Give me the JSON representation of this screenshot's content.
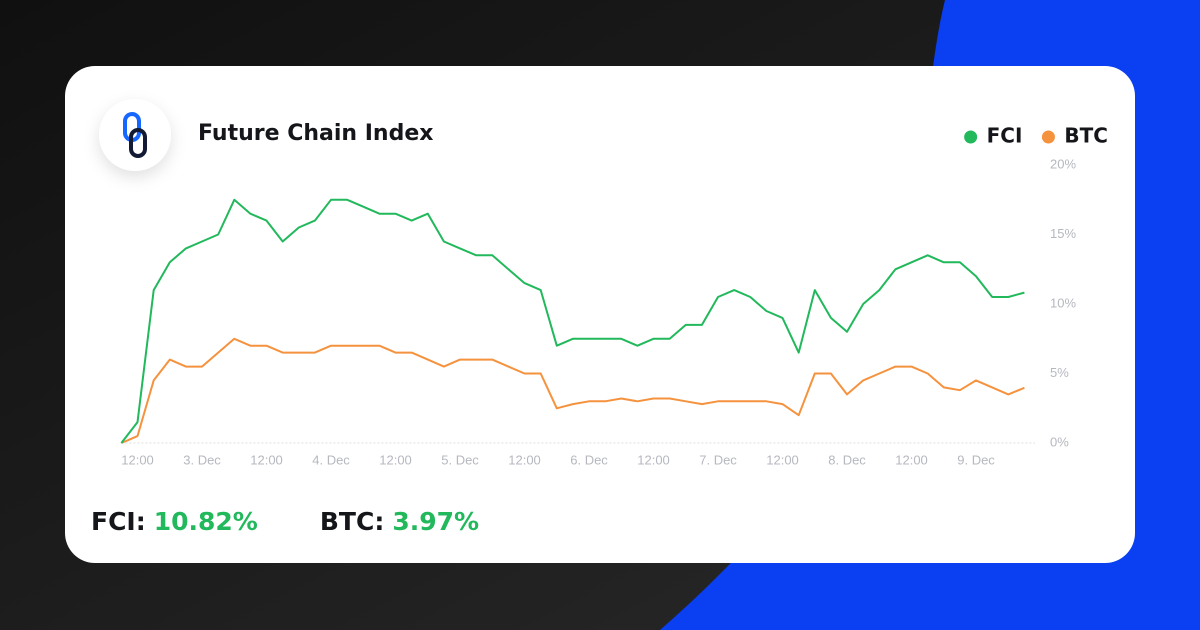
{
  "chart_data": {
    "type": "line",
    "title": "Future Chain Index",
    "categories": [
      null,
      "12:00",
      null,
      null,
      null,
      "3. Dec",
      null,
      null,
      null,
      "12:00",
      null,
      null,
      null,
      "4. Dec",
      null,
      null,
      null,
      "12:00",
      null,
      null,
      null,
      "5. Dec",
      null,
      null,
      null,
      "12:00",
      null,
      null,
      null,
      "6. Dec",
      null,
      null,
      null,
      "12:00",
      null,
      null,
      null,
      "7. Dec",
      null,
      null,
      null,
      "12:00",
      null,
      null,
      null,
      "8. Dec",
      null,
      null,
      null,
      "12:00",
      null,
      null,
      null,
      "9. Dec",
      null,
      null,
      null
    ],
    "series": [
      {
        "name": "FCI",
        "color": "#22b85c",
        "values": [
          0,
          1.5,
          11,
          13,
          14,
          14.5,
          15,
          17.5,
          16.5,
          16,
          14.5,
          15.5,
          16,
          17.5,
          17.5,
          17,
          16.5,
          16.5,
          16,
          16.5,
          14.5,
          14,
          13.5,
          13.5,
          12.5,
          11.5,
          11,
          7,
          7.5,
          7.5,
          7.5,
          7.5,
          7,
          7.5,
          7.5,
          8.5,
          8.5,
          10.5,
          11,
          10.5,
          9.5,
          9,
          6.5,
          11,
          9,
          8,
          10,
          11,
          12.5,
          13,
          13.5,
          13,
          13,
          12,
          10.5,
          10.5,
          10.82
        ]
      },
      {
        "name": "BTC",
        "color": "#f5923e",
        "values": [
          0,
          0.5,
          4.5,
          6,
          5.5,
          5.5,
          6.5,
          7.5,
          7,
          7,
          6.5,
          6.5,
          6.5,
          7,
          7,
          7,
          7,
          6.5,
          6.5,
          6,
          5.5,
          6,
          6,
          6,
          5.5,
          5,
          5,
          2.5,
          2.8,
          3,
          3,
          3.2,
          3,
          3.2,
          3.2,
          3,
          2.8,
          3,
          3,
          3,
          3,
          2.8,
          2,
          5,
          5,
          3.5,
          4.5,
          5,
          5.5,
          5.5,
          5,
          4,
          3.8,
          4.5,
          4,
          3.5,
          3.97
        ]
      }
    ],
    "ylim": [
      0,
      20
    ],
    "yticks": [
      {
        "value": 0,
        "label": "0%"
      },
      {
        "value": 5,
        "label": "5%"
      },
      {
        "value": 10,
        "label": "10%"
      },
      {
        "value": 15,
        "label": "15%"
      },
      {
        "value": 20,
        "label": "20%"
      }
    ],
    "grid": false,
    "legend": "top-right",
    "summary": [
      {
        "label": "FCI:",
        "value": "10.82%"
      },
      {
        "label": "BTC:",
        "value": "3.97%"
      }
    ],
    "summary_color": "#22b85c"
  }
}
